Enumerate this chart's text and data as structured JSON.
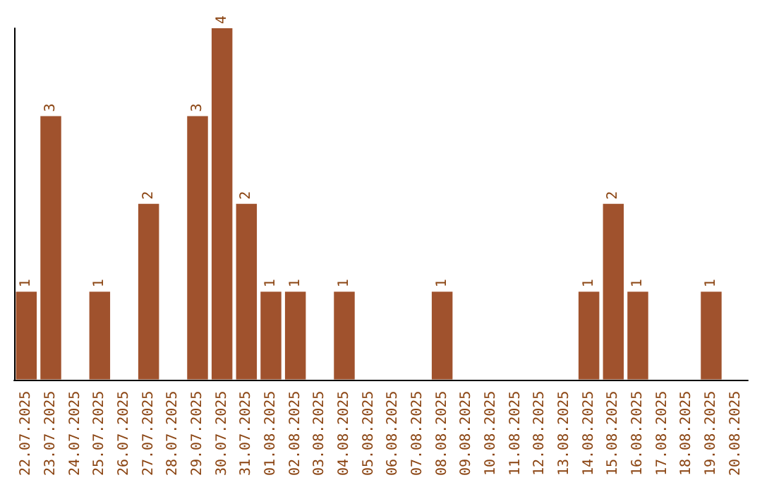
{
  "chart_data": {
    "type": "bar",
    "categories": [
      "22.07.2025",
      "23.07.2025",
      "24.07.2025",
      "25.07.2025",
      "26.07.2025",
      "27.07.2025",
      "28.07.2025",
      "29.07.2025",
      "30.07.2025",
      "31.07.2025",
      "01.08.2025",
      "02.08.2025",
      "03.08.2025",
      "04.08.2025",
      "05.08.2025",
      "06.08.2025",
      "07.08.2025",
      "08.08.2025",
      "09.08.2025",
      "10.08.2025",
      "11.08.2025",
      "12.08.2025",
      "13.08.2025",
      "14.08.2025",
      "15.08.2025",
      "16.08.2025",
      "17.08.2025",
      "18.08.2025",
      "19.08.2025",
      "20.08.2025"
    ],
    "values": [
      1,
      3,
      0,
      1,
      0,
      2,
      0,
      3,
      4,
      2,
      1,
      1,
      0,
      1,
      0,
      0,
      0,
      1,
      0,
      0,
      0,
      0,
      0,
      1,
      2,
      1,
      0,
      0,
      1,
      0
    ],
    "value_labels": [
      "1",
      "3",
      null,
      "1",
      null,
      "2",
      null,
      "3",
      "4",
      "2",
      "1",
      "1",
      null,
      "1",
      null,
      null,
      null,
      "1",
      null,
      null,
      null,
      null,
      null,
      "1",
      "2",
      "1",
      null,
      null,
      "1",
      null
    ],
    "color": "#a0522d",
    "tick_labels": "x"
  }
}
